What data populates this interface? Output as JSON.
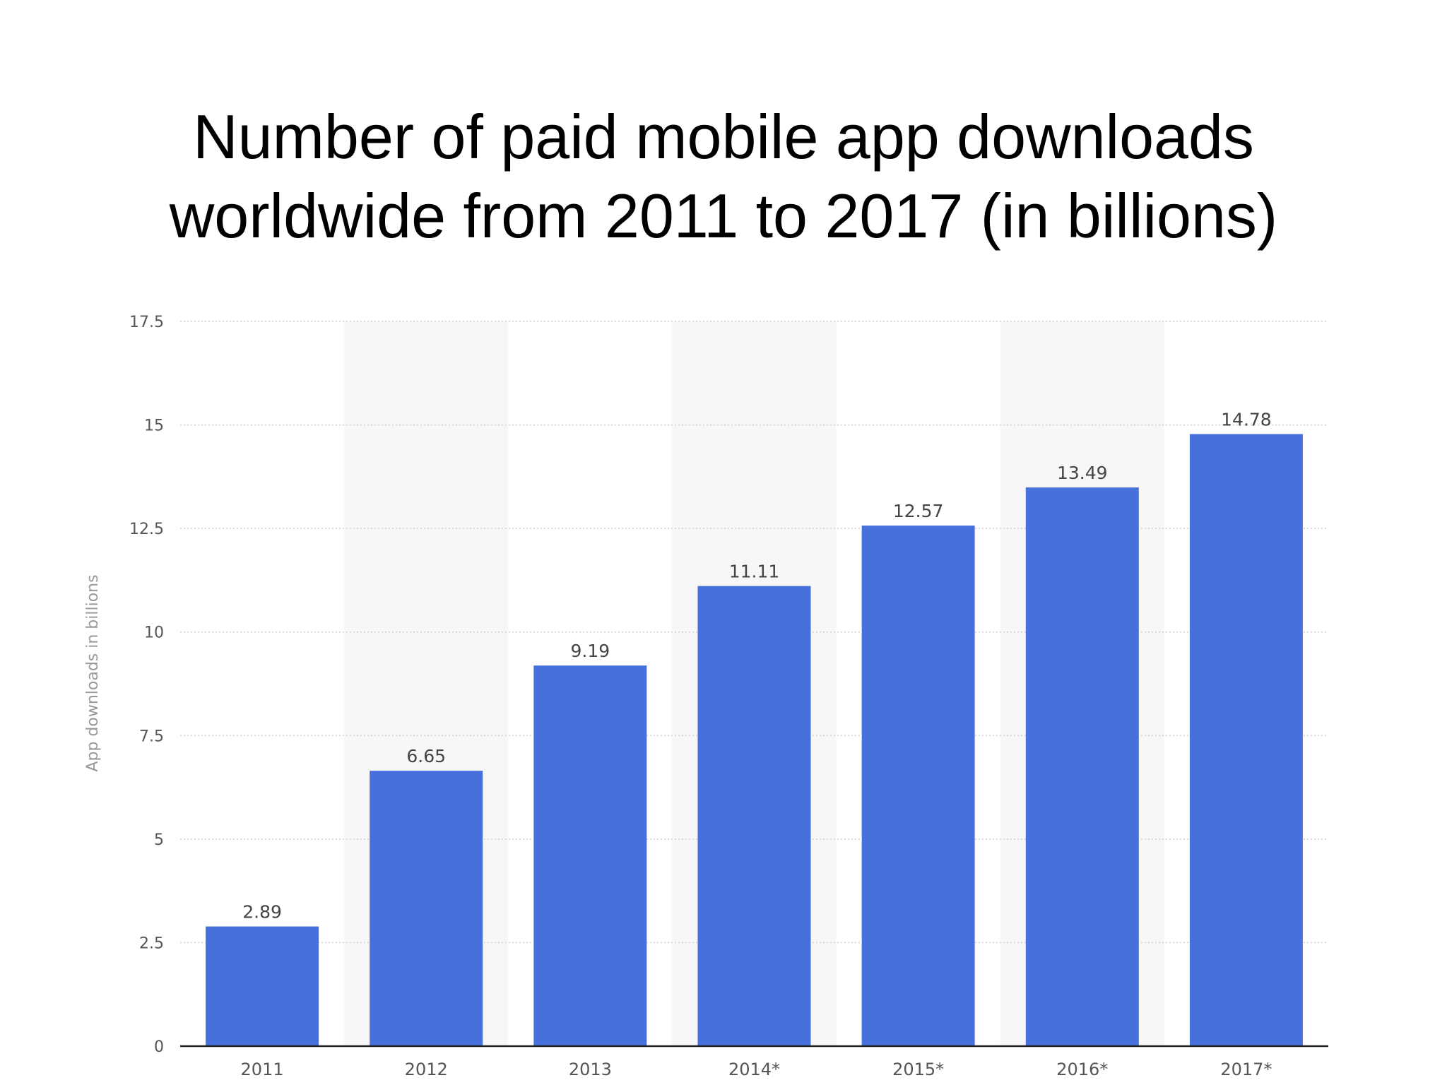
{
  "slide": {
    "title_line_1": "Number of paid mobile app downloads",
    "title_line_2": "worldwide from 2011 to 2017 (in billions)"
  },
  "chart_data": {
    "type": "bar",
    "title": "Number of paid mobile app downloads worldwide from 2011 to 2017 (in billions)",
    "xlabel": "",
    "ylabel": "App downloads in billions",
    "categories": [
      "2011",
      "2012",
      "2013",
      "2014*",
      "2015*",
      "2016*",
      "2017*"
    ],
    "series": [
      {
        "values": [
          2.89,
          6.65,
          9.19,
          11.11,
          12.57,
          13.49,
          14.78
        ],
        "data_labels": [
          "2.89",
          "6.65",
          "9.19",
          "11.11",
          "12.57",
          "13.49",
          "14.78"
        ]
      }
    ],
    "ylim": [
      0,
      17.5
    ],
    "yticks": [
      0,
      2.5,
      5,
      7.5,
      10,
      12.5,
      15,
      17.5
    ],
    "ytick_labels": [
      "0",
      "2.5",
      "5",
      "7.5",
      "10",
      "12.5",
      "15",
      "17.5"
    ],
    "grid": true,
    "grid_style": "dotted",
    "alternating_column_shading": true,
    "legend": "none",
    "colors": {
      "bar": "#4670dc",
      "grid": "#cfcfcf",
      "axis": "#222222",
      "tick_label": "#555555",
      "data_label": "#444444",
      "axis_label": "#999999",
      "band": "#f7f7f7"
    }
  }
}
